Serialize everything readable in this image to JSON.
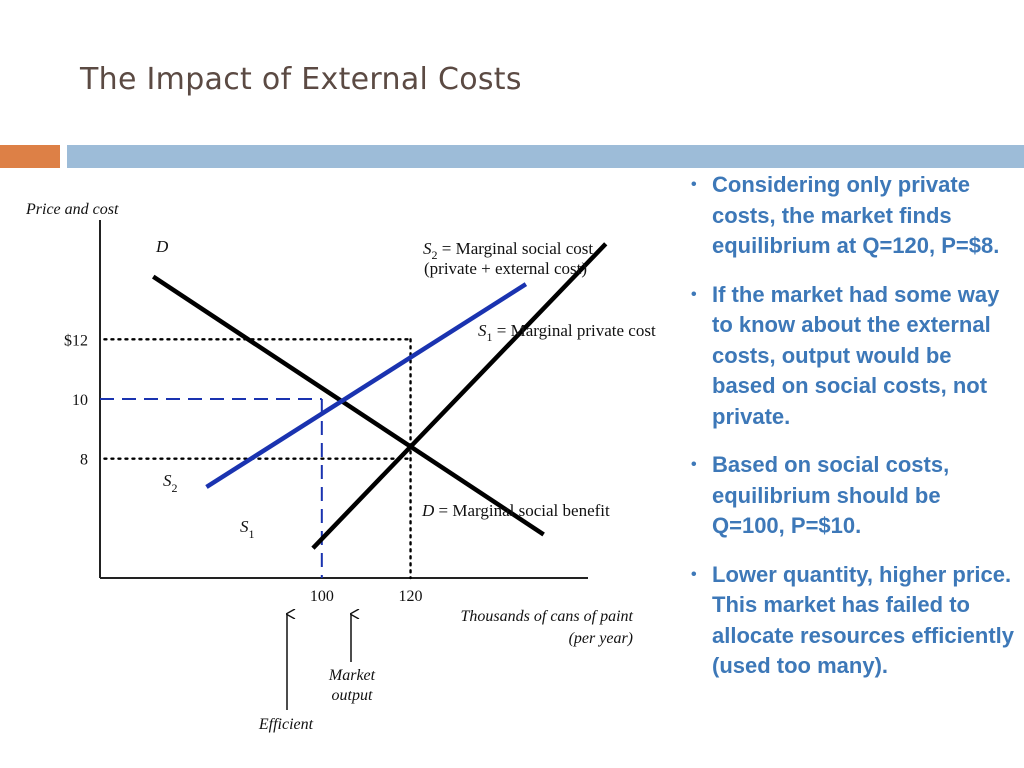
{
  "slide": {
    "title": "The Impact of External Costs",
    "accent_orange": "#dd8046",
    "accent_blue": "#9dbcd8",
    "bullet_color": "#3d78b8"
  },
  "bullets": [
    "Considering only private costs, the market finds equilibrium at Q=120, P=$8.",
    "If the market had some way to know about the external costs, output would be based on social costs, not private.",
    "Based on social costs, equilibrium should be Q=100, P=$10.",
    "Lower quantity, higher price.  This market has failed to allocate resources efficiently (used too many)."
  ],
  "chart_data": {
    "type": "line",
    "ylabel": "Price and cost",
    "xlabel_line1": "Thousands of cans of paint",
    "xlabel_line2": "(per year)",
    "xlim": [
      50,
      160
    ],
    "ylim": [
      4,
      16
    ],
    "y_ticks": [
      {
        "value": 12,
        "label": "$12"
      },
      {
        "value": 10,
        "label": "10"
      },
      {
        "value": 8,
        "label": "8"
      }
    ],
    "x_ticks": [
      {
        "value": 100,
        "label": "100"
      },
      {
        "value": 120,
        "label": "120"
      }
    ],
    "series": [
      {
        "name": "D",
        "color": "#000000",
        "points": [
          [
            62,
            14.1
          ],
          [
            150,
            5.46
          ]
        ]
      },
      {
        "name": "S1",
        "color": "#000000",
        "points": [
          [
            98,
            5.0
          ],
          [
            164,
            15.2
          ]
        ]
      },
      {
        "name": "S2",
        "color": "#1a33b0",
        "points": [
          [
            74,
            7.05
          ],
          [
            146,
            13.85
          ]
        ]
      }
    ],
    "guides": [
      {
        "kind": "h",
        "y": 12,
        "x_from": 51,
        "x_to": 120,
        "style": "dotted",
        "color": "#000000"
      },
      {
        "kind": "v",
        "x": 120,
        "y_from": 12,
        "y_to": 4,
        "style": "dotted",
        "color": "#000000"
      },
      {
        "kind": "h",
        "y": 8,
        "x_from": 51,
        "x_to": 120,
        "style": "dotted",
        "color": "#000000"
      },
      {
        "kind": "h",
        "y": 10,
        "x_from": 50,
        "x_to": 100,
        "style": "dashed",
        "color": "#1a33b0"
      },
      {
        "kind": "v",
        "x": 100,
        "y_from": 10,
        "y_to": 4,
        "style": "dashed",
        "color": "#1a33b0"
      }
    ],
    "annotations": {
      "d_top": "D",
      "s2_label_main": "S",
      "s2_label_sub": "2",
      "s2_desc": " = Marginal social cost",
      "s2_desc2": "(private + external cost)",
      "s1_label_main": "S",
      "s1_label_sub": "1",
      "s1_desc": " = Marginal private cost",
      "d_desc_main": "D",
      "d_desc": " = Marginal social benefit",
      "s2_low_main": "S",
      "s2_low_sub": "2",
      "s1_low_main": "S",
      "s1_low_sub": "1",
      "market_output_1": "Market",
      "market_output_2": "output",
      "efficient": "Efficient"
    }
  }
}
